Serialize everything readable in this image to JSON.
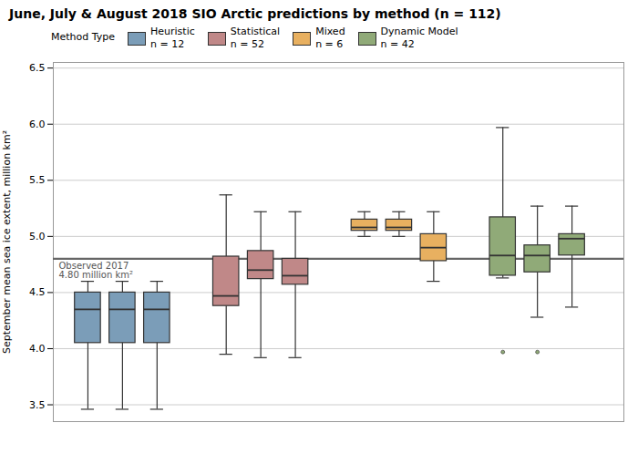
{
  "chart_data": {
    "type": "box",
    "title": "June, July & August 2018 SIO Arctic predictions by method (n = 112)",
    "ylabel": "September mean sea ice extent, million km²",
    "ylim": [
      3.35,
      6.55
    ],
    "yticks": [
      3.5,
      {
        "value": 4.0,
        "label": "4.0"
      },
      4.5,
      {
        "value": 5.0,
        "label": "5.0"
      },
      5.5,
      {
        "value": 6.0,
        "label": "6.0"
      },
      6.5
    ],
    "grid": true,
    "tick_labels": "y",
    "legend": "upper left",
    "legend_title": "Method Type",
    "observed_line": 4.8,
    "observed_label": "Observed 2017\n4.80 million km²",
    "series": [
      {
        "name": "Heuristic\nn = 12",
        "color": "#7b9db8",
        "boxes": [
          {
            "whislo": 3.46,
            "q1": 4.05,
            "med": 4.35,
            "q3": 4.5,
            "whishi": 4.6,
            "fliers": []
          },
          {
            "whislo": 3.46,
            "q1": 4.05,
            "med": 4.35,
            "q3": 4.5,
            "whishi": 4.6,
            "fliers": []
          },
          {
            "whislo": 3.46,
            "q1": 4.05,
            "med": 4.35,
            "q3": 4.5,
            "whishi": 4.6,
            "fliers": []
          }
        ]
      },
      {
        "name": "Statistical\nn = 52",
        "color": "#c08888",
        "boxes": [
          {
            "whislo": 3.95,
            "q1": 4.38,
            "med": 4.47,
            "q3": 4.82,
            "whishi": 5.37,
            "fliers": []
          },
          {
            "whislo": 3.92,
            "q1": 4.62,
            "med": 4.7,
            "q3": 4.87,
            "whishi": 5.22,
            "fliers": []
          },
          {
            "whislo": 3.92,
            "q1": 4.57,
            "med": 4.65,
            "q3": 4.8,
            "whishi": 5.22,
            "fliers": []
          }
        ]
      },
      {
        "name": "Mixed\nn = 6",
        "color": "#e8b060",
        "boxes": [
          {
            "whislo": 5.0,
            "q1": 5.05,
            "med": 5.08,
            "q3": 5.15,
            "whishi": 5.22,
            "fliers": []
          },
          {
            "whislo": 5.0,
            "q1": 5.05,
            "med": 5.08,
            "q3": 5.15,
            "whishi": 5.22,
            "fliers": []
          },
          {
            "whislo": 4.6,
            "q1": 4.78,
            "med": 4.9,
            "q3": 5.02,
            "whishi": 5.22,
            "fliers": []
          }
        ]
      },
      {
        "name": "Dynamic Model\nn = 42",
        "color": "#90aa78",
        "boxes": [
          {
            "whislo": 4.63,
            "q1": 4.65,
            "med": 4.83,
            "q3": 5.17,
            "whishi": 5.97,
            "fliers": [
              3.97
            ]
          },
          {
            "whislo": 4.28,
            "q1": 4.68,
            "med": 4.83,
            "q3": 4.92,
            "whishi": 5.27,
            "fliers": [
              3.97
            ]
          },
          {
            "whislo": 4.37,
            "q1": 4.83,
            "med": 4.98,
            "q3": 5.02,
            "whishi": 5.27,
            "fliers": []
          }
        ]
      }
    ]
  }
}
